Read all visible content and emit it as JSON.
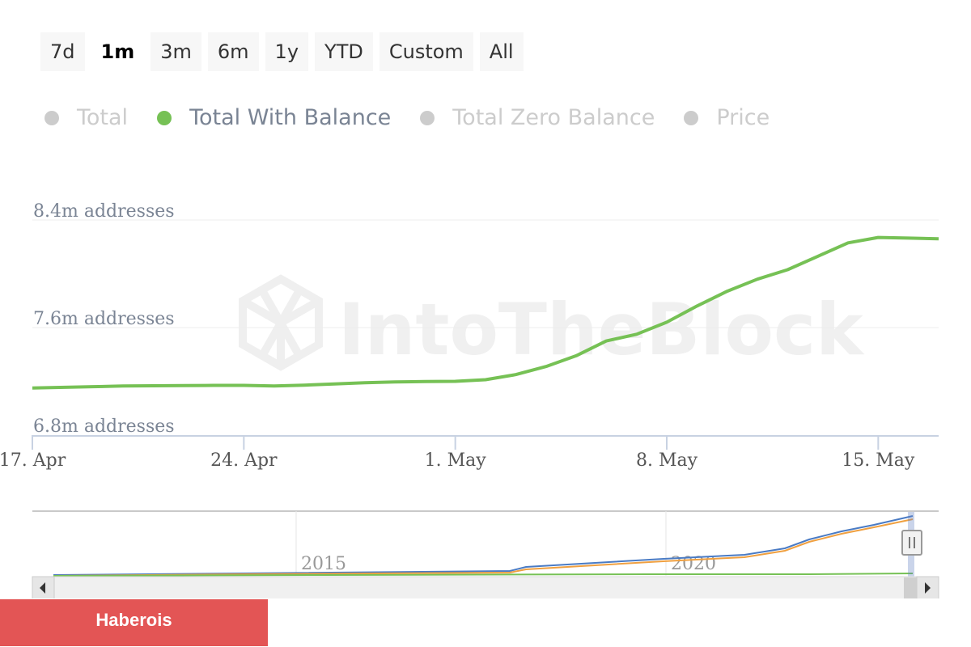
{
  "range_selector": {
    "buttons": [
      "7d",
      "1m",
      "3m",
      "6m",
      "1y",
      "YTD",
      "Custom",
      "All"
    ],
    "active": "1m"
  },
  "legend": {
    "items": [
      {
        "label": "Total",
        "visible": false,
        "color": "#cccccc"
      },
      {
        "label": "Total With Balance",
        "visible": true,
        "color": "#76c155"
      },
      {
        "label": "Total Zero Balance",
        "visible": false,
        "color": "#cccccc"
      },
      {
        "label": "Price",
        "visible": false,
        "color": "#cccccc"
      }
    ]
  },
  "watermark": "IntoTheBlock",
  "chart_data": {
    "type": "line",
    "ylim": [
      6.8,
      8.4
    ],
    "y_ticks": [
      {
        "value": 8.4,
        "label": "8.4m addresses"
      },
      {
        "value": 7.6,
        "label": "7.6m addresses"
      },
      {
        "value": 6.8,
        "label": "6.8m addresses"
      }
    ],
    "x_ticks": [
      {
        "day": 0,
        "label": "17. Apr"
      },
      {
        "day": 7,
        "label": "24. Apr"
      },
      {
        "day": 14,
        "label": "1. May"
      },
      {
        "day": 21,
        "label": "8. May"
      },
      {
        "day": 28,
        "label": "15. May"
      }
    ],
    "xlim": [
      0,
      30
    ],
    "series": [
      {
        "name": "Total With Balance",
        "color": "#76c155",
        "x": [
          0,
          2,
          3,
          4,
          5,
          6,
          7,
          8,
          9,
          10,
          11,
          12,
          13,
          14,
          15,
          16,
          17,
          18,
          19,
          20,
          21,
          22,
          23,
          24,
          25,
          26,
          27,
          28,
          29,
          30
        ],
        "values": [
          7.15,
          7.16,
          7.165,
          7.167,
          7.168,
          7.17,
          7.17,
          7.165,
          7.172,
          7.18,
          7.19,
          7.195,
          7.198,
          7.2,
          7.212,
          7.25,
          7.31,
          7.39,
          7.5,
          7.55,
          7.64,
          7.76,
          7.87,
          7.96,
          8.03,
          8.13,
          8.23,
          8.27,
          8.265,
          8.26
        ]
      }
    ]
  },
  "navigator": {
    "year_labels": [
      "2015",
      "2020"
    ],
    "series_colors": [
      "#4a7bc4",
      "#f0a040",
      "#76c155"
    ]
  },
  "footer": {
    "label": "Haberois"
  }
}
